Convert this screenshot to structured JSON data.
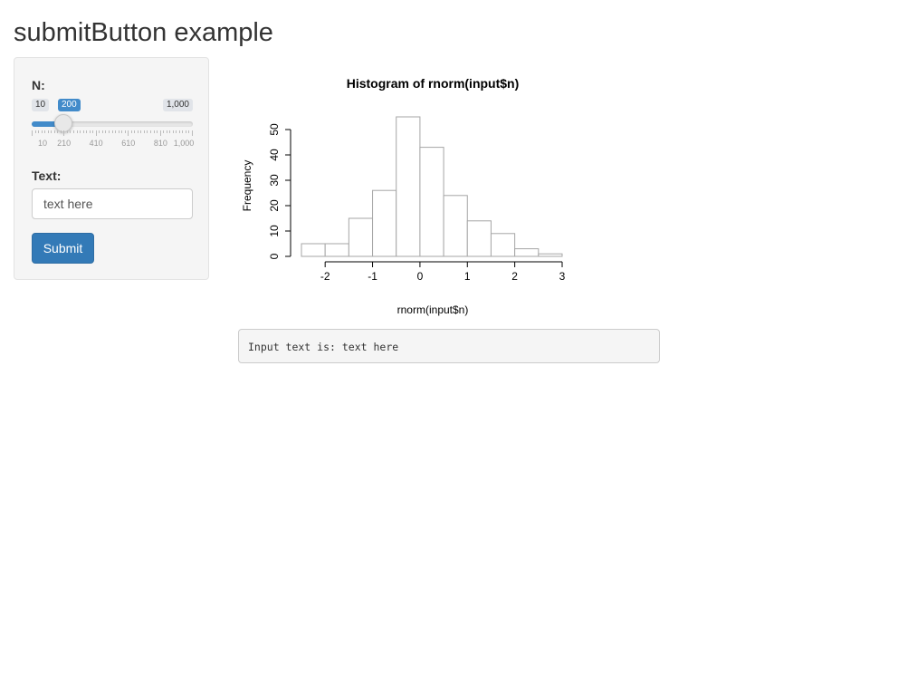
{
  "page": {
    "title": "submitButton example"
  },
  "sidebar": {
    "n_label": "N:",
    "slider": {
      "min": 10,
      "max": 1000,
      "value": 200,
      "min_label": "10",
      "max_label": "1,000",
      "value_label": "200",
      "tick_labels": [
        "10",
        "210",
        "410",
        "610",
        "810",
        "1,000"
      ],
      "accent_color": "#428bca"
    },
    "text_label": "Text:",
    "text_input": {
      "value": "text here"
    },
    "submit_label": "Submit",
    "submit_color": "#337ab7"
  },
  "chart_data": {
    "type": "bar",
    "title": "Histogram of rnorm(input$n)",
    "xlabel": "rnorm(input$n)",
    "ylabel": "Frequency",
    "bins": [
      {
        "x0": -2.5,
        "x1": -2.0,
        "count": 5
      },
      {
        "x0": -2.0,
        "x1": -1.5,
        "count": 5
      },
      {
        "x0": -1.5,
        "x1": -1.0,
        "count": 15
      },
      {
        "x0": -1.0,
        "x1": -0.5,
        "count": 26
      },
      {
        "x0": -0.5,
        "x1": 0.0,
        "count": 55
      },
      {
        "x0": 0.0,
        "x1": 0.5,
        "count": 43
      },
      {
        "x0": 0.5,
        "x1": 1.0,
        "count": 24
      },
      {
        "x0": 1.0,
        "x1": 1.5,
        "count": 14
      },
      {
        "x0": 1.5,
        "x1": 2.0,
        "count": 9
      },
      {
        "x0": 2.0,
        "x1": 2.5,
        "count": 3
      },
      {
        "x0": 2.5,
        "x1": 3.0,
        "count": 1
      }
    ],
    "x_ticks": [
      "-2",
      "-1",
      "0",
      "1",
      "2",
      "3"
    ],
    "y_ticks": [
      "0",
      "10",
      "20",
      "30",
      "40",
      "50"
    ],
    "xlim": [
      -2.5,
      3
    ],
    "ylim": [
      0,
      55
    ],
    "grid": false
  },
  "output": {
    "text": "Input text is: text here"
  }
}
